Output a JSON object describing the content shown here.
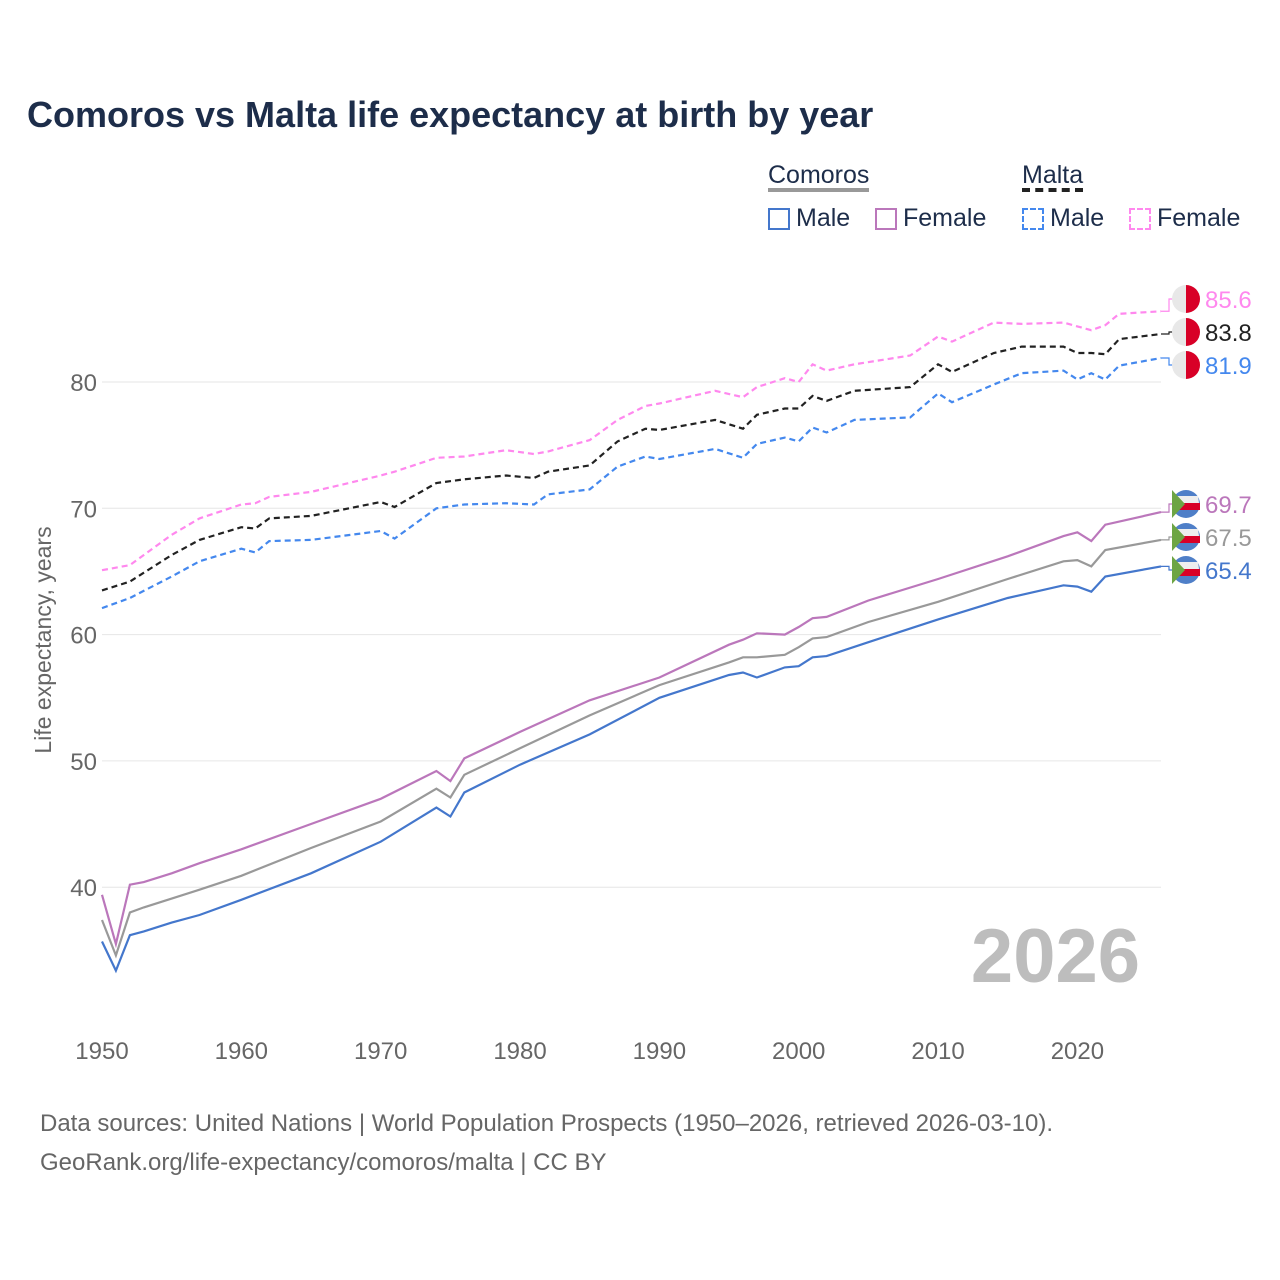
{
  "title": "Comoros vs Malta life expectancy at birth by year",
  "legend": {
    "groups": [
      {
        "name": "Comoros",
        "items": [
          "Male",
          "Female"
        ]
      },
      {
        "name": "Malta",
        "items": [
          "Male",
          "Female"
        ]
      }
    ]
  },
  "footer": {
    "line1": "Data sources: United Nations | World Population Prospects (1950–2026, retrieved 2026-03-10).",
    "line2": "GeoRank.org/life-expectancy/comoros/malta | CC BY"
  },
  "chart_data": {
    "type": "line",
    "title": "Comoros vs Malta life expectancy at birth by year",
    "xlabel": "",
    "ylabel": "Life expectancy, years",
    "xlim": [
      1950,
      2026
    ],
    "ylim": [
      31,
      89
    ],
    "xticks": [
      1950,
      1960,
      1970,
      1980,
      1990,
      2000,
      2010,
      2020
    ],
    "yticks": [
      40,
      50,
      60,
      70,
      80
    ],
    "grid": true,
    "watermark": "2026",
    "legend_position": "top-right",
    "series": [
      {
        "name": "Malta Female",
        "color": "#ff88ee",
        "dashed": true,
        "end_label": "85.6",
        "x": [
          1950,
          1952,
          1955,
          1957,
          1960,
          1961,
          1962,
          1965,
          1970,
          1971,
          1974,
          1976,
          1979,
          1981,
          1982,
          1985,
          1987,
          1989,
          1990,
          1994,
          1996,
          1997,
          1999,
          2000,
          2001,
          2002,
          2004,
          2008,
          2010,
          2011,
          2014,
          2016,
          2019,
          2020,
          2021,
          2022,
          2023,
          2026
        ],
        "y": [
          65.1,
          65.5,
          67.9,
          69.2,
          70.3,
          70.4,
          70.9,
          71.3,
          72.6,
          72.9,
          74.0,
          74.1,
          74.6,
          74.3,
          74.5,
          75.4,
          77.0,
          78.1,
          78.3,
          79.3,
          78.8,
          79.6,
          80.3,
          80.0,
          81.4,
          80.9,
          81.4,
          82.1,
          83.6,
          83.2,
          84.7,
          84.6,
          84.7,
          84.4,
          84.1,
          84.5,
          85.4,
          85.6
        ]
      },
      {
        "name": "Malta",
        "color": "#222222",
        "dashed": true,
        "end_label": "83.8",
        "x": [
          1950,
          1952,
          1955,
          1957,
          1960,
          1961,
          1962,
          1965,
          1970,
          1971,
          1974,
          1976,
          1979,
          1981,
          1982,
          1985,
          1987,
          1989,
          1990,
          1994,
          1996,
          1997,
          1999,
          2000,
          2001,
          2002,
          2004,
          2008,
          2010,
          2011,
          2014,
          2016,
          2019,
          2020,
          2021,
          2022,
          2023,
          2026
        ],
        "y": [
          63.5,
          64.2,
          66.3,
          67.5,
          68.5,
          68.4,
          69.2,
          69.4,
          70.5,
          70.1,
          72.0,
          72.3,
          72.6,
          72.4,
          72.9,
          73.4,
          75.3,
          76.3,
          76.2,
          77.0,
          76.3,
          77.4,
          77.9,
          77.9,
          78.9,
          78.5,
          79.3,
          79.6,
          81.4,
          80.8,
          82.3,
          82.8,
          82.8,
          82.3,
          82.3,
          82.2,
          83.4,
          83.8
        ]
      },
      {
        "name": "Malta Male",
        "color": "#4488ee",
        "dashed": true,
        "end_label": "81.9",
        "x": [
          1950,
          1952,
          1955,
          1957,
          1960,
          1961,
          1962,
          1965,
          1970,
          1971,
          1974,
          1976,
          1979,
          1981,
          1982,
          1985,
          1987,
          1989,
          1990,
          1994,
          1996,
          1997,
          1999,
          2000,
          2001,
          2002,
          2004,
          2008,
          2010,
          2011,
          2014,
          2016,
          2019,
          2020,
          2021,
          2022,
          2023,
          2026
        ],
        "y": [
          62.1,
          62.9,
          64.6,
          65.8,
          66.8,
          66.5,
          67.4,
          67.5,
          68.2,
          67.6,
          70.0,
          70.3,
          70.4,
          70.3,
          71.1,
          71.5,
          73.3,
          74.1,
          73.9,
          74.7,
          74.0,
          75.1,
          75.6,
          75.3,
          76.4,
          76.0,
          77.0,
          77.2,
          79.1,
          78.4,
          79.8,
          80.7,
          80.9,
          80.2,
          80.7,
          80.2,
          81.3,
          81.9
        ]
      },
      {
        "name": "Comoros Female",
        "color": "#bb77bb",
        "dashed": false,
        "end_label": "69.7",
        "x": [
          1950,
          1951,
          1952,
          1953,
          1955,
          1957,
          1960,
          1965,
          1970,
          1974,
          1975,
          1976,
          1980,
          1985,
          1990,
          1995,
          1996,
          1997,
          1999,
          2000,
          2001,
          2002,
          2005,
          2010,
          2015,
          2019,
          2020,
          2021,
          2022,
          2026
        ],
        "y": [
          39.4,
          35.5,
          40.2,
          40.4,
          41.1,
          41.9,
          43.0,
          45.0,
          47.0,
          49.2,
          48.4,
          50.2,
          52.3,
          54.8,
          56.6,
          59.2,
          59.6,
          60.1,
          60.0,
          60.6,
          61.3,
          61.4,
          62.7,
          64.4,
          66.2,
          67.8,
          68.1,
          67.4,
          68.7,
          69.7
        ]
      },
      {
        "name": "Comoros",
        "color": "#999999",
        "dashed": false,
        "end_label": "67.5",
        "x": [
          1950,
          1951,
          1952,
          1953,
          1955,
          1957,
          1960,
          1965,
          1970,
          1974,
          1975,
          1976,
          1980,
          1985,
          1990,
          1995,
          1996,
          1997,
          1999,
          2000,
          2001,
          2002,
          2005,
          2010,
          2015,
          2019,
          2020,
          2021,
          2022,
          2026
        ],
        "y": [
          37.4,
          34.6,
          38.0,
          38.4,
          39.1,
          39.8,
          40.9,
          43.1,
          45.2,
          47.8,
          47.1,
          48.9,
          51.0,
          53.6,
          56.0,
          57.8,
          58.2,
          58.2,
          58.4,
          59.0,
          59.7,
          59.8,
          61.0,
          62.6,
          64.4,
          65.8,
          65.9,
          65.4,
          66.7,
          67.5
        ]
      },
      {
        "name": "Comoros Male",
        "color": "#4477cc",
        "dashed": false,
        "end_label": "65.4",
        "x": [
          1950,
          1951,
          1952,
          1953,
          1955,
          1957,
          1960,
          1965,
          1970,
          1974,
          1975,
          1976,
          1980,
          1985,
          1990,
          1995,
          1996,
          1997,
          1999,
          2000,
          2001,
          2002,
          2005,
          2010,
          2015,
          2019,
          2020,
          2021,
          2022,
          2026
        ],
        "y": [
          35.7,
          33.4,
          36.2,
          36.5,
          37.2,
          37.8,
          39.0,
          41.1,
          43.6,
          46.3,
          45.6,
          47.5,
          49.7,
          52.1,
          55.0,
          56.8,
          57.0,
          56.6,
          57.4,
          57.5,
          58.2,
          58.3,
          59.4,
          61.2,
          62.9,
          63.9,
          63.8,
          63.4,
          64.6,
          65.4
        ]
      }
    ]
  }
}
